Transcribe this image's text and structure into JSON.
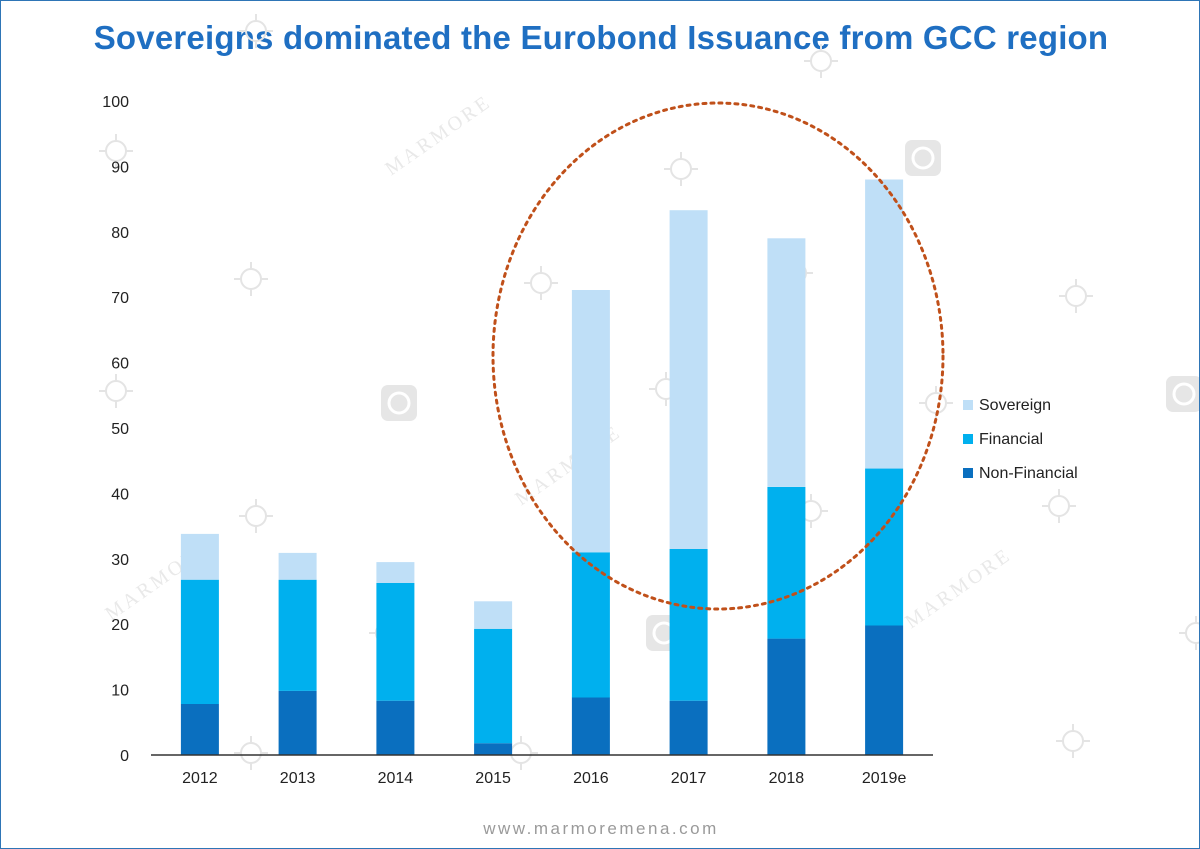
{
  "title": "Sovereigns dominated the Eurobond Issuance from GCC region",
  "website": "www.marmoremena.com",
  "watermark_text": "MARMORE",
  "colors": {
    "sovereign": "#bfdff7",
    "financial": "#00b0ee",
    "non_financial": "#0a6fbf",
    "highlight_circle": "#c0501a"
  },
  "chart_data": {
    "type": "bar",
    "stacked": true,
    "categories": [
      "2012",
      "2013",
      "2014",
      "2015",
      "2016",
      "2017",
      "2018",
      "2019e"
    ],
    "series": [
      {
        "name": "Non-Financial",
        "values": [
          7.8,
          9.8,
          8.3,
          1.8,
          8.8,
          8.3,
          17.8,
          19.8
        ]
      },
      {
        "name": "Financial",
        "values": [
          19.0,
          17.0,
          18.0,
          17.5,
          22.2,
          23.2,
          23.2,
          24.0
        ]
      },
      {
        "name": "Sovereign",
        "values": [
          7.0,
          4.1,
          3.2,
          4.2,
          40.1,
          51.8,
          38.0,
          44.2
        ]
      }
    ],
    "yticks": [
      0,
      10,
      20,
      30,
      40,
      50,
      60,
      70,
      80,
      90,
      100
    ],
    "ylim": [
      0,
      100
    ],
    "legend": [
      "Sovereign",
      "Financial",
      "Non-Financial"
    ],
    "legend_position": "right",
    "grid": false,
    "highlight": "dotted circle around 2016–2019e"
  }
}
